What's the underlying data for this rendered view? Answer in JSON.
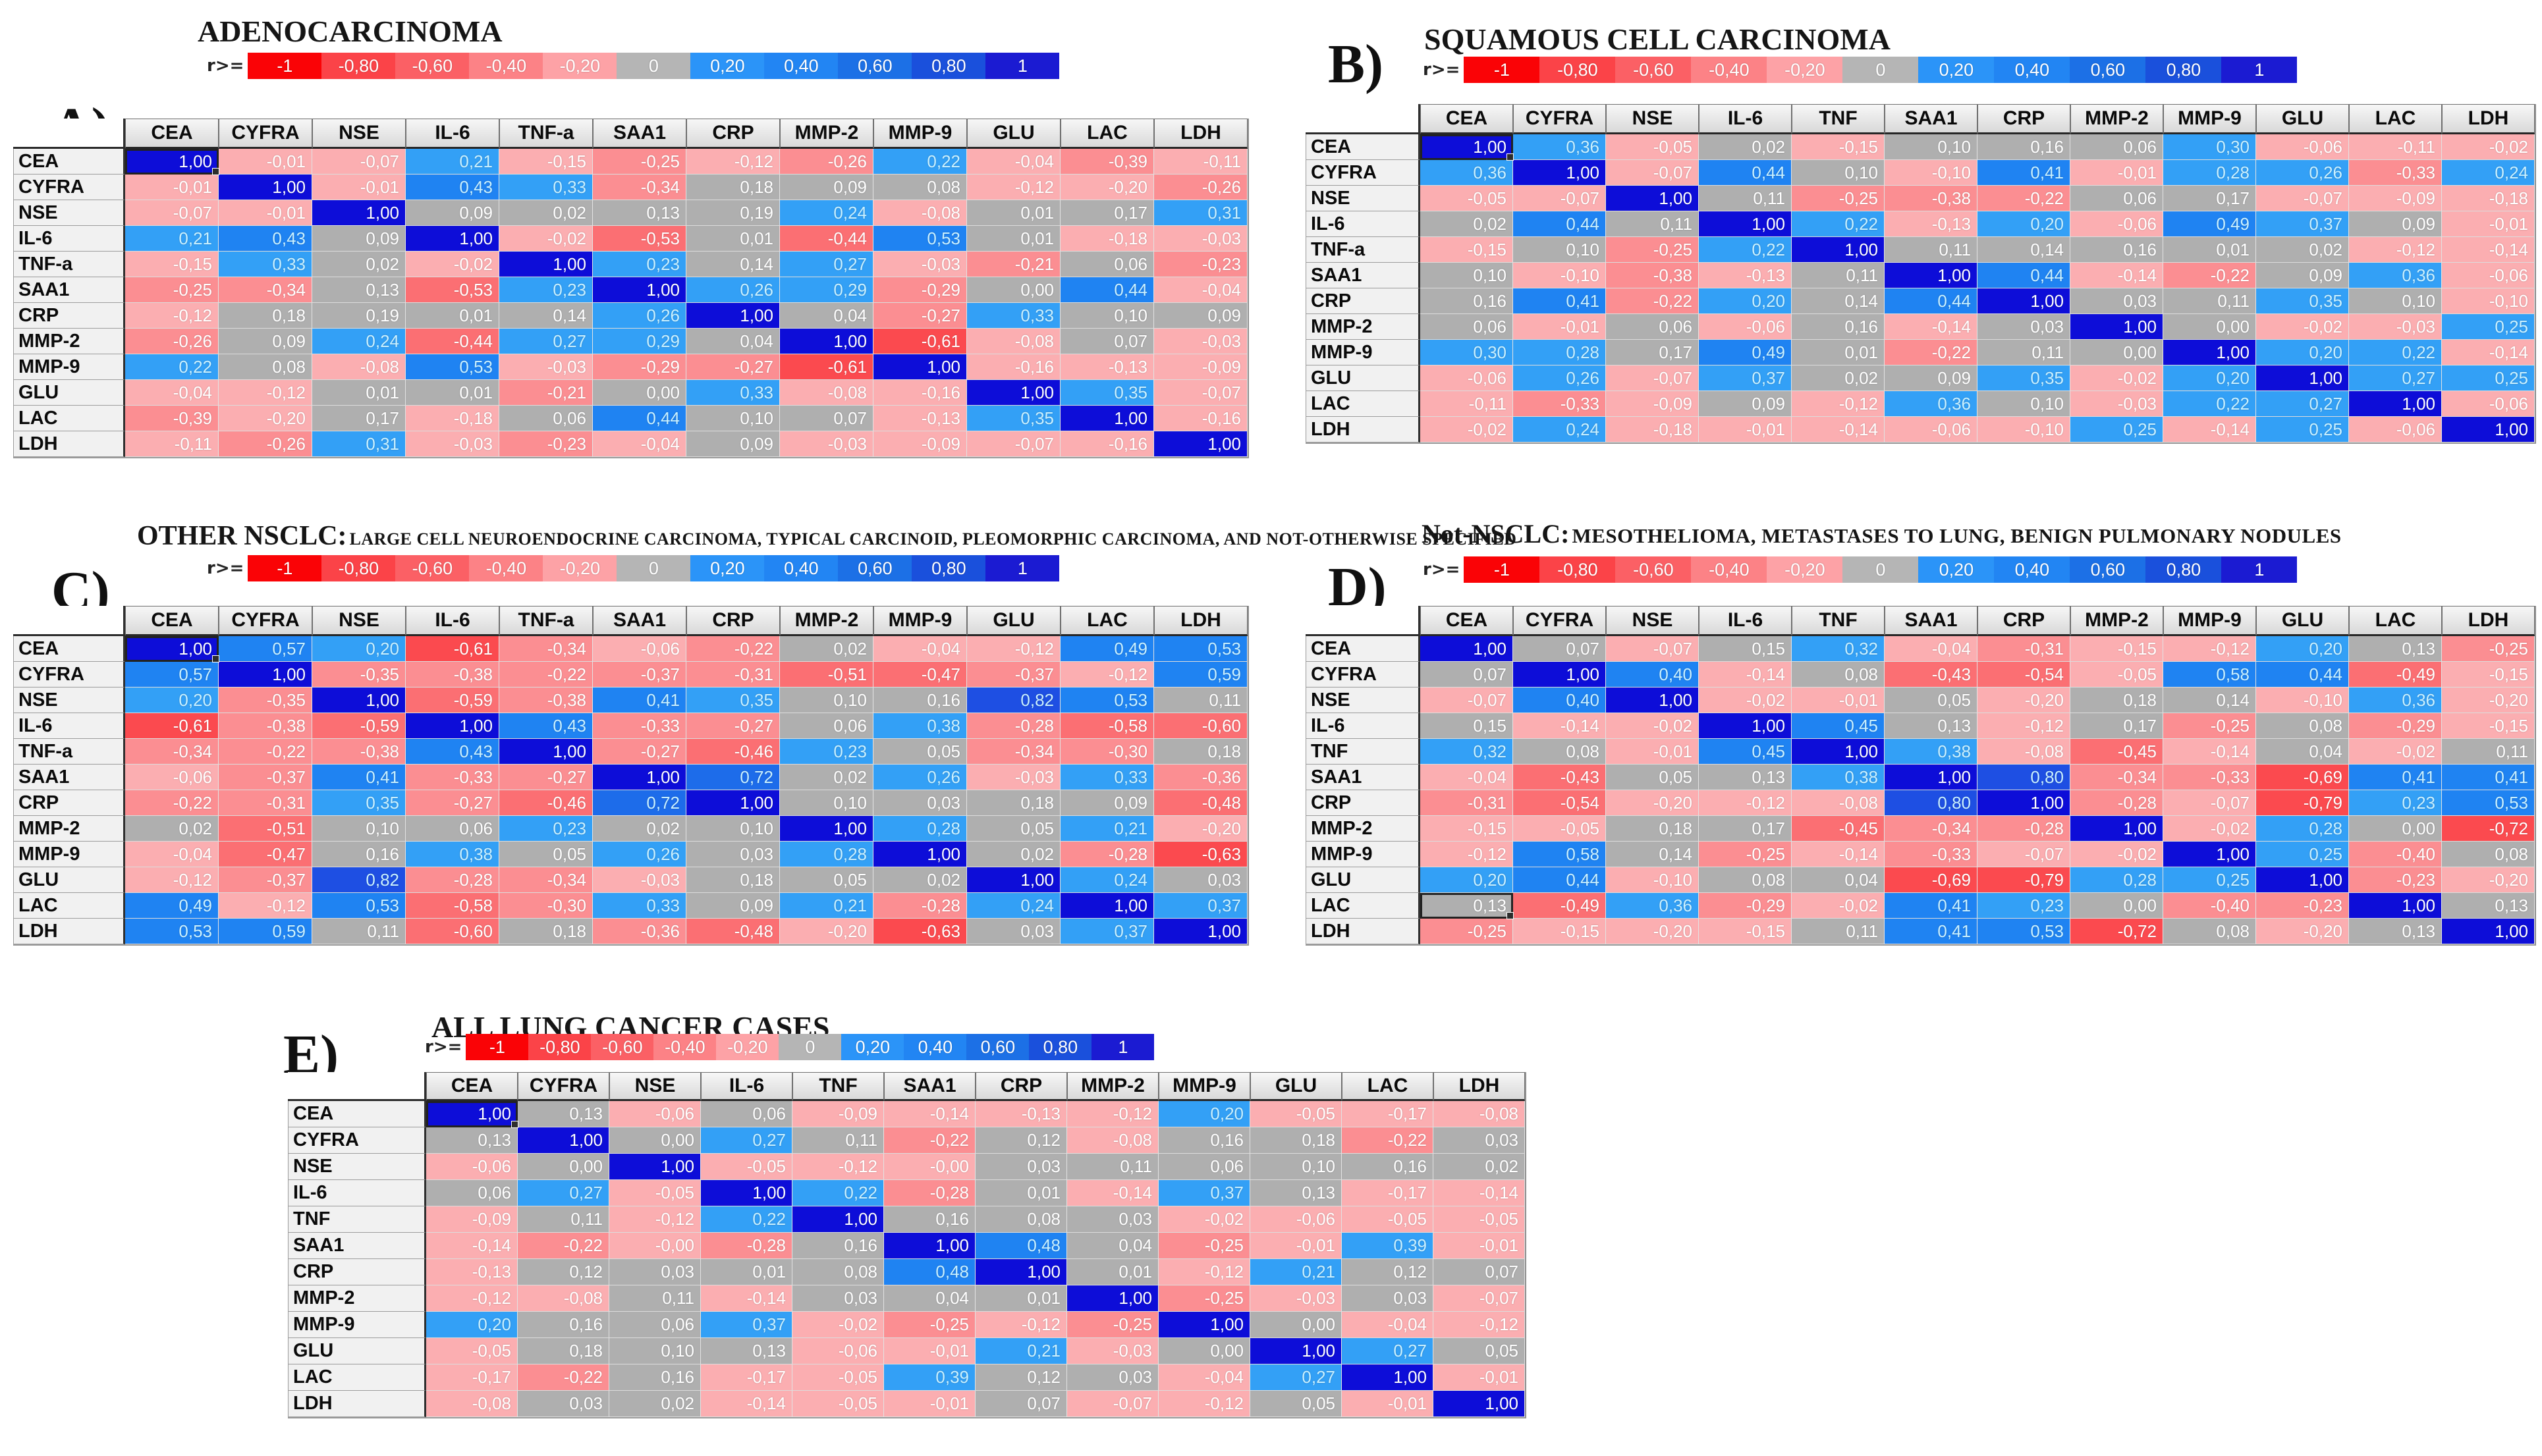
{
  "legend": {
    "prefix": "r>=",
    "bins": [
      {
        "label": "-1",
        "t": -1,
        "color": "#FA0306"
      },
      {
        "label": "-0,80",
        "t": -0.8,
        "color": "#FB4348"
      },
      {
        "label": "-0,60",
        "t": -0.6,
        "color": "#FB6065"
      },
      {
        "label": "-0,40",
        "t": -0.4,
        "color": "#FC8286"
      },
      {
        "label": "-0,20",
        "t": -0.2,
        "color": "#FDA2A6"
      },
      {
        "label": "0",
        "t": 0,
        "color": "#B5B5B5"
      },
      {
        "label": "0,20",
        "t": 0.2,
        "color": "#2B94F8"
      },
      {
        "label": "0,40",
        "t": 0.4,
        "color": "#2285F3"
      },
      {
        "label": "0,60",
        "t": 0.6,
        "color": "#1C70E6"
      },
      {
        "label": "0,80",
        "t": 0.8,
        "color": "#1A50DC"
      },
      {
        "label": "1",
        "t": 1,
        "color": "#1B1BD2"
      }
    ]
  },
  "cell_colors": {
    "1": "#0D0DD8",
    "0.8": "#1E4FE3",
    "0.6": "#1D6CEA",
    "0.4": "#1F83F2",
    "0.2": "#33A0F6",
    "0": "#AFAFAF",
    "-0.2": "#FBAEB1",
    "-0.4": "#FB8E92",
    "-0.6": "#FB6F73",
    "-0.8": "#FB4A4F",
    "-1": "#FB1A1E"
  },
  "text_colors": {
    "default": "#FFFFFF",
    "positive_blue": "#C9F0FF"
  },
  "panels": [
    {
      "letter": "A)"
    },
    {
      "letter": "B)"
    },
    {
      "letter": "C)"
    },
    {
      "letter": "D)"
    },
    {
      "letter": "E)"
    }
  ],
  "selection": [
    {
      "row": 0,
      "col": 0
    },
    {
      "row": 0,
      "col": 0
    },
    {
      "row": 0,
      "col": 0
    },
    {
      "row": 10,
      "col": 0
    },
    {
      "row": 0,
      "col": 0
    }
  ],
  "chart_data": [
    {
      "type": "heatmap",
      "title": "ADENOCARCINOMA",
      "subtitle": "",
      "row_labels": [
        "CEA",
        "CYFRA",
        "NSE",
        "IL-6",
        "TNF-a",
        "SAA1",
        "CRP",
        "MMP-2",
        "MMP-9",
        "GLU",
        "LAC",
        "LDH"
      ],
      "col_labels": [
        "CEA",
        "CYFRA",
        "NSE",
        "IL-6",
        "TNF-a",
        "SAA1",
        "CRP",
        "MMP-2",
        "MMP-9",
        "GLU",
        "LAC",
        "LDH"
      ],
      "value_range": [
        -1,
        1
      ],
      "decimal_separator": ",",
      "values": [
        [
          1.0,
          -0.01,
          -0.07,
          0.21,
          -0.15,
          -0.25,
          -0.12,
          -0.26,
          0.22,
          -0.04,
          -0.39,
          -0.11
        ],
        [
          -0.01,
          1.0,
          -0.01,
          0.43,
          0.33,
          -0.34,
          0.18,
          0.09,
          0.08,
          -0.12,
          -0.2,
          -0.26
        ],
        [
          -0.07,
          -0.01,
          1.0,
          0.09,
          0.02,
          0.13,
          0.19,
          0.24,
          -0.08,
          0.01,
          0.17,
          0.31
        ],
        [
          0.21,
          0.43,
          0.09,
          1.0,
          -0.02,
          -0.53,
          0.01,
          -0.44,
          0.53,
          0.01,
          -0.18,
          -0.03
        ],
        [
          -0.15,
          0.33,
          0.02,
          -0.02,
          1.0,
          0.23,
          0.14,
          0.27,
          -0.03,
          -0.21,
          0.06,
          -0.23
        ],
        [
          -0.25,
          -0.34,
          0.13,
          -0.53,
          0.23,
          1.0,
          0.26,
          0.29,
          -0.29,
          0.0,
          0.44,
          -0.04
        ],
        [
          -0.12,
          0.18,
          0.19,
          0.01,
          0.14,
          0.26,
          1.0,
          0.04,
          -0.27,
          0.33,
          0.1,
          0.09
        ],
        [
          -0.26,
          0.09,
          0.24,
          -0.44,
          0.27,
          0.29,
          0.04,
          1.0,
          -0.61,
          -0.08,
          0.07,
          -0.03
        ],
        [
          0.22,
          0.08,
          -0.08,
          0.53,
          -0.03,
          -0.29,
          -0.27,
          -0.61,
          1.0,
          -0.16,
          -0.13,
          -0.09
        ],
        [
          -0.04,
          -0.12,
          0.01,
          0.01,
          -0.21,
          0.0,
          0.33,
          -0.08,
          -0.16,
          1.0,
          0.35,
          -0.07
        ],
        [
          -0.39,
          -0.2,
          0.17,
          -0.18,
          0.06,
          0.44,
          0.1,
          0.07,
          -0.13,
          0.35,
          1.0,
          -0.16
        ],
        [
          -0.11,
          -0.26,
          0.31,
          -0.03,
          -0.23,
          -0.04,
          0.09,
          -0.03,
          -0.09,
          -0.07,
          -0.16,
          1.0
        ]
      ]
    },
    {
      "type": "heatmap",
      "title": "SQUAMOUS CELL CARCINOMA",
      "subtitle": "",
      "row_labels": [
        "CEA",
        "CYFRA",
        "NSE",
        "IL-6",
        "TNF-a",
        "SAA1",
        "CRP",
        "MMP-2",
        "MMP-9",
        "GLU",
        "LAC",
        "LDH"
      ],
      "col_labels": [
        "CEA",
        "CYFRA",
        "NSE",
        "IL-6",
        "TNF",
        "SAA1",
        "CRP",
        "MMP-2",
        "MMP-9",
        "GLU",
        "LAC",
        "LDH"
      ],
      "value_range": [
        -1,
        1
      ],
      "decimal_separator": ",",
      "values": [
        [
          1.0,
          0.36,
          -0.05,
          0.02,
          -0.15,
          0.1,
          0.16,
          0.06,
          0.3,
          -0.06,
          -0.11,
          -0.02
        ],
        [
          0.36,
          1.0,
          -0.07,
          0.44,
          0.1,
          -0.1,
          0.41,
          -0.01,
          0.28,
          0.26,
          -0.33,
          0.24
        ],
        [
          -0.05,
          -0.07,
          1.0,
          0.11,
          -0.25,
          -0.38,
          -0.22,
          0.06,
          0.17,
          -0.07,
          -0.09,
          -0.18
        ],
        [
          0.02,
          0.44,
          0.11,
          1.0,
          0.22,
          -0.13,
          0.2,
          -0.06,
          0.49,
          0.37,
          0.09,
          -0.01
        ],
        [
          -0.15,
          0.1,
          -0.25,
          0.22,
          1.0,
          0.11,
          0.14,
          0.16,
          0.01,
          0.02,
          -0.12,
          -0.14
        ],
        [
          0.1,
          -0.1,
          -0.38,
          -0.13,
          0.11,
          1.0,
          0.44,
          -0.14,
          -0.22,
          0.09,
          0.36,
          -0.06
        ],
        [
          0.16,
          0.41,
          -0.22,
          0.2,
          0.14,
          0.44,
          1.0,
          0.03,
          0.11,
          0.35,
          0.1,
          -0.1
        ],
        [
          0.06,
          -0.01,
          0.06,
          -0.06,
          0.16,
          -0.14,
          0.03,
          1.0,
          0.0,
          -0.02,
          -0.03,
          0.25
        ],
        [
          0.3,
          0.28,
          0.17,
          0.49,
          0.01,
          -0.22,
          0.11,
          0.0,
          1.0,
          0.2,
          0.22,
          -0.14
        ],
        [
          -0.06,
          0.26,
          -0.07,
          0.37,
          0.02,
          0.09,
          0.35,
          -0.02,
          0.2,
          1.0,
          0.27,
          0.25
        ],
        [
          -0.11,
          -0.33,
          -0.09,
          0.09,
          -0.12,
          0.36,
          0.1,
          -0.03,
          0.22,
          0.27,
          1.0,
          -0.06
        ],
        [
          -0.02,
          0.24,
          -0.18,
          -0.01,
          -0.14,
          -0.06,
          -0.1,
          0.25,
          -0.14,
          0.25,
          -0.06,
          1.0
        ]
      ]
    },
    {
      "type": "heatmap",
      "title": "OTHER NSCLC:",
      "subtitle": "LARGE CELL NEUROENDOCRINE CARCINOMA, TYPICAL CARCINOID, PLEOMORPHIC CARCINOMA, AND NOT-OTHERWISE SPECIFIED",
      "row_labels": [
        "CEA",
        "CYFRA",
        "NSE",
        "IL-6",
        "TNF-a",
        "SAA1",
        "CRP",
        "MMP-2",
        "MMP-9",
        "GLU",
        "LAC",
        "LDH"
      ],
      "col_labels": [
        "CEA",
        "CYFRA",
        "NSE",
        "IL-6",
        "TNF-a",
        "SAA1",
        "CRP",
        "MMP-2",
        "MMP-9",
        "GLU",
        "LAC",
        "LDH"
      ],
      "value_range": [
        -1,
        1
      ],
      "decimal_separator": ",",
      "values": [
        [
          1.0,
          0.57,
          0.2,
          -0.61,
          -0.34,
          -0.06,
          -0.22,
          0.02,
          -0.04,
          -0.12,
          0.49,
          0.53
        ],
        [
          0.57,
          1.0,
          -0.35,
          -0.38,
          -0.22,
          -0.37,
          -0.31,
          -0.51,
          -0.47,
          -0.37,
          -0.12,
          0.59
        ],
        [
          0.2,
          -0.35,
          1.0,
          -0.59,
          -0.38,
          0.41,
          0.35,
          0.1,
          0.16,
          0.82,
          0.53,
          0.11
        ],
        [
          -0.61,
          -0.38,
          -0.59,
          1.0,
          0.43,
          -0.33,
          -0.27,
          0.06,
          0.38,
          -0.28,
          -0.58,
          -0.6
        ],
        [
          -0.34,
          -0.22,
          -0.38,
          0.43,
          1.0,
          -0.27,
          -0.46,
          0.23,
          0.05,
          -0.34,
          -0.3,
          0.18
        ],
        [
          -0.06,
          -0.37,
          0.41,
          -0.33,
          -0.27,
          1.0,
          0.72,
          0.02,
          0.26,
          -0.03,
          0.33,
          -0.36
        ],
        [
          -0.22,
          -0.31,
          0.35,
          -0.27,
          -0.46,
          0.72,
          1.0,
          0.1,
          0.03,
          0.18,
          0.09,
          -0.48
        ],
        [
          0.02,
          -0.51,
          0.1,
          0.06,
          0.23,
          0.02,
          0.1,
          1.0,
          0.28,
          0.05,
          0.21,
          -0.2
        ],
        [
          -0.04,
          -0.47,
          0.16,
          0.38,
          0.05,
          0.26,
          0.03,
          0.28,
          1.0,
          0.02,
          -0.28,
          -0.63
        ],
        [
          -0.12,
          -0.37,
          0.82,
          -0.28,
          -0.34,
          -0.03,
          0.18,
          0.05,
          0.02,
          1.0,
          0.24,
          0.03
        ],
        [
          0.49,
          -0.12,
          0.53,
          -0.58,
          -0.3,
          0.33,
          0.09,
          0.21,
          -0.28,
          0.24,
          1.0,
          0.37
        ],
        [
          0.53,
          0.59,
          0.11,
          -0.6,
          0.18,
          -0.36,
          -0.48,
          -0.2,
          -0.63,
          0.03,
          0.37,
          1.0
        ]
      ]
    },
    {
      "type": "heatmap",
      "title": "Not-NSCLC:",
      "subtitle": "MESOTHELIOMA, METASTASES TO LUNG, BENIGN PULMONARY NODULES",
      "row_labels": [
        "CEA",
        "CYFRA",
        "NSE",
        "IL-6",
        "TNF",
        "SAA1",
        "CRP",
        "MMP-2",
        "MMP-9",
        "GLU",
        "LAC",
        "LDH"
      ],
      "col_labels": [
        "CEA",
        "CYFRA",
        "NSE",
        "IL-6",
        "TNF",
        "SAA1",
        "CRP",
        "MMP-2",
        "MMP-9",
        "GLU",
        "LAC",
        "LDH"
      ],
      "value_range": [
        -1,
        1
      ],
      "decimal_separator": ",",
      "values": [
        [
          1.0,
          0.07,
          -0.07,
          0.15,
          0.32,
          -0.04,
          -0.31,
          -0.15,
          -0.12,
          0.2,
          0.13,
          -0.25
        ],
        [
          0.07,
          1.0,
          0.4,
          -0.14,
          0.08,
          -0.43,
          -0.54,
          -0.05,
          0.58,
          0.44,
          -0.49,
          -0.15
        ],
        [
          -0.07,
          0.4,
          1.0,
          -0.02,
          -0.01,
          0.05,
          -0.2,
          0.18,
          0.14,
          -0.1,
          0.36,
          -0.2
        ],
        [
          0.15,
          -0.14,
          -0.02,
          1.0,
          0.45,
          0.13,
          -0.12,
          0.17,
          -0.25,
          0.08,
          -0.29,
          -0.15
        ],
        [
          0.32,
          0.08,
          -0.01,
          0.45,
          1.0,
          0.38,
          -0.08,
          -0.45,
          -0.14,
          0.04,
          -0.02,
          0.11
        ],
        [
          -0.04,
          -0.43,
          0.05,
          0.13,
          0.38,
          1.0,
          0.8,
          -0.34,
          -0.33,
          -0.69,
          0.41,
          0.41
        ],
        [
          -0.31,
          -0.54,
          -0.2,
          -0.12,
          -0.08,
          0.8,
          1.0,
          -0.28,
          -0.07,
          -0.79,
          0.23,
          0.53
        ],
        [
          -0.15,
          -0.05,
          0.18,
          0.17,
          -0.45,
          -0.34,
          -0.28,
          1.0,
          -0.02,
          0.28,
          0.0,
          -0.72
        ],
        [
          -0.12,
          0.58,
          0.14,
          -0.25,
          -0.14,
          -0.33,
          -0.07,
          -0.02,
          1.0,
          0.25,
          -0.4,
          0.08
        ],
        [
          0.2,
          0.44,
          -0.1,
          0.08,
          0.04,
          -0.69,
          -0.79,
          0.28,
          0.25,
          1.0,
          -0.23,
          -0.2
        ],
        [
          0.13,
          -0.49,
          0.36,
          -0.29,
          -0.02,
          0.41,
          0.23,
          0.0,
          -0.4,
          -0.23,
          1.0,
          0.13
        ],
        [
          -0.25,
          -0.15,
          -0.2,
          -0.15,
          0.11,
          0.41,
          0.53,
          -0.72,
          0.08,
          -0.2,
          0.13,
          1.0
        ]
      ]
    },
    {
      "type": "heatmap",
      "title": "ALL LUNG CANCER CASES",
      "subtitle": "",
      "row_labels": [
        "CEA",
        "CYFRA",
        "NSE",
        "IL-6",
        "TNF",
        "SAA1",
        "CRP",
        "MMP-2",
        "MMP-9",
        "GLU",
        "LAC",
        "LDH"
      ],
      "col_labels": [
        "CEA",
        "CYFRA",
        "NSE",
        "IL-6",
        "TNF",
        "SAA1",
        "CRP",
        "MMP-2",
        "MMP-9",
        "GLU",
        "LAC",
        "LDH"
      ],
      "value_range": [
        -1,
        1
      ],
      "decimal_separator": ",",
      "values": [
        [
          1.0,
          0.13,
          -0.06,
          0.06,
          -0.09,
          -0.14,
          -0.13,
          -0.12,
          0.2,
          -0.05,
          -0.17,
          -0.08
        ],
        [
          0.13,
          1.0,
          0.0,
          0.27,
          0.11,
          -0.22,
          0.12,
          -0.08,
          0.16,
          0.18,
          -0.22,
          0.03
        ],
        [
          -0.06,
          0.0,
          1.0,
          -0.05,
          -0.12,
          -0.0,
          0.03,
          0.11,
          0.06,
          0.1,
          0.16,
          0.02
        ],
        [
          0.06,
          0.27,
          -0.05,
          1.0,
          0.22,
          -0.28,
          0.01,
          -0.14,
          0.37,
          0.13,
          -0.17,
          -0.14
        ],
        [
          -0.09,
          0.11,
          -0.12,
          0.22,
          1.0,
          0.16,
          0.08,
          0.03,
          -0.02,
          -0.06,
          -0.05,
          -0.05
        ],
        [
          -0.14,
          -0.22,
          -0.0,
          -0.28,
          0.16,
          1.0,
          0.48,
          0.04,
          -0.25,
          -0.01,
          0.39,
          -0.01
        ],
        [
          -0.13,
          0.12,
          0.03,
          0.01,
          0.08,
          0.48,
          1.0,
          0.01,
          -0.12,
          0.21,
          0.12,
          0.07
        ],
        [
          -0.12,
          -0.08,
          0.11,
          -0.14,
          0.03,
          0.04,
          0.01,
          1.0,
          -0.25,
          -0.03,
          0.03,
          -0.07
        ],
        [
          0.2,
          0.16,
          0.06,
          0.37,
          -0.02,
          -0.25,
          -0.12,
          -0.25,
          1.0,
          0.0,
          -0.04,
          -0.12
        ],
        [
          -0.05,
          0.18,
          0.1,
          0.13,
          -0.06,
          -0.01,
          0.21,
          -0.03,
          0.0,
          1.0,
          0.27,
          0.05
        ],
        [
          -0.17,
          -0.22,
          0.16,
          -0.17,
          -0.05,
          0.39,
          0.12,
          0.03,
          -0.04,
          0.27,
          1.0,
          -0.01
        ],
        [
          -0.08,
          0.03,
          0.02,
          -0.14,
          -0.05,
          -0.01,
          0.07,
          -0.07,
          -0.12,
          0.05,
          -0.01,
          1.0
        ]
      ]
    }
  ]
}
